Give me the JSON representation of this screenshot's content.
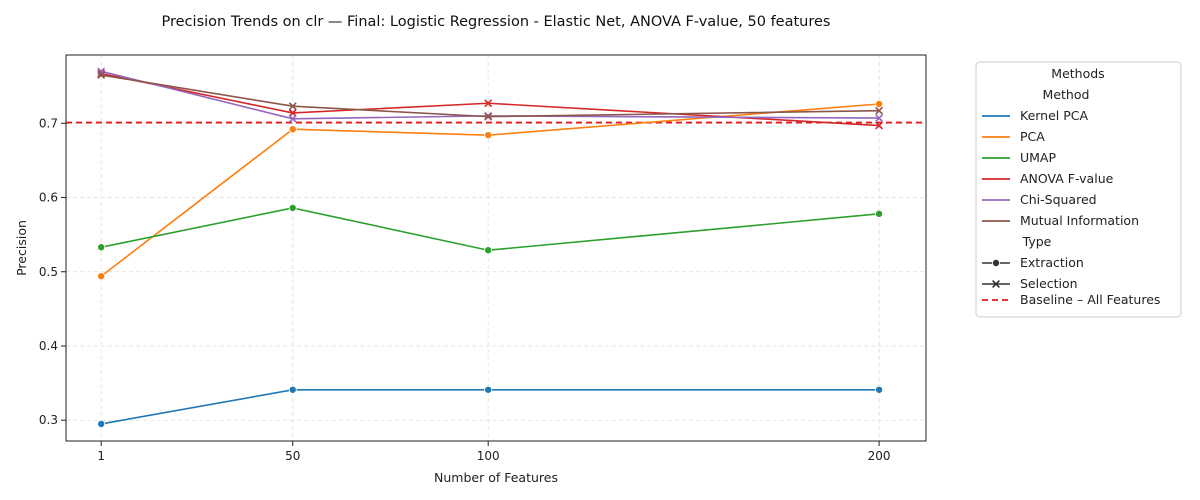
{
  "chart_data": {
    "type": "line",
    "title": "Precision Trends on clr — Final: Logistic Regression - Elastic Net, ANOVA F-value, 50 features",
    "xlabel": "Number of Features",
    "ylabel": "Precision",
    "x": [
      1,
      50,
      100,
      200
    ],
    "x_ticks": [
      "1",
      "50",
      "100",
      "200"
    ],
    "y_ticks": [
      "0.3",
      "0.4",
      "0.5",
      "0.6",
      "0.7"
    ],
    "xlim": [
      -8,
      212
    ],
    "ylim": [
      0.272,
      0.792
    ],
    "grid": true,
    "baseline": {
      "name": "Baseline – All Features",
      "value": 0.701,
      "color": "#e41a1c",
      "style": "dashed"
    },
    "series": [
      {
        "name": "Kernel PCA",
        "type": "Extraction",
        "marker": "circle",
        "color": "#1f77b4",
        "values": [
          0.295,
          0.341,
          0.341,
          0.341
        ]
      },
      {
        "name": "PCA",
        "type": "Extraction",
        "marker": "circle",
        "color": "#ff7f0e",
        "values": [
          0.494,
          0.692,
          0.684,
          0.726
        ]
      },
      {
        "name": "UMAP",
        "type": "Extraction",
        "marker": "circle",
        "color": "#2ca02c",
        "values": [
          0.533,
          0.586,
          0.529,
          0.578
        ]
      },
      {
        "name": "ANOVA F-value",
        "type": "Selection",
        "marker": "x",
        "color": "#d62728",
        "values": [
          0.767,
          0.714,
          0.727,
          0.697
        ]
      },
      {
        "name": "Chi-Squared",
        "type": "Selection",
        "marker": "x",
        "color": "#9467bd",
        "values": [
          0.77,
          0.706,
          0.71,
          0.707
        ]
      },
      {
        "name": "Mutual Information",
        "type": "Selection",
        "marker": "x",
        "color": "#8c564b",
        "values": [
          0.765,
          0.723,
          0.709,
          0.717
        ]
      }
    ],
    "legend": {
      "title": "Methods",
      "placement": "outside-right",
      "method_header": "Method",
      "type_header": "Type",
      "types": [
        {
          "label": "Extraction",
          "marker": "circle"
        },
        {
          "label": "Selection",
          "marker": "x"
        }
      ]
    }
  }
}
